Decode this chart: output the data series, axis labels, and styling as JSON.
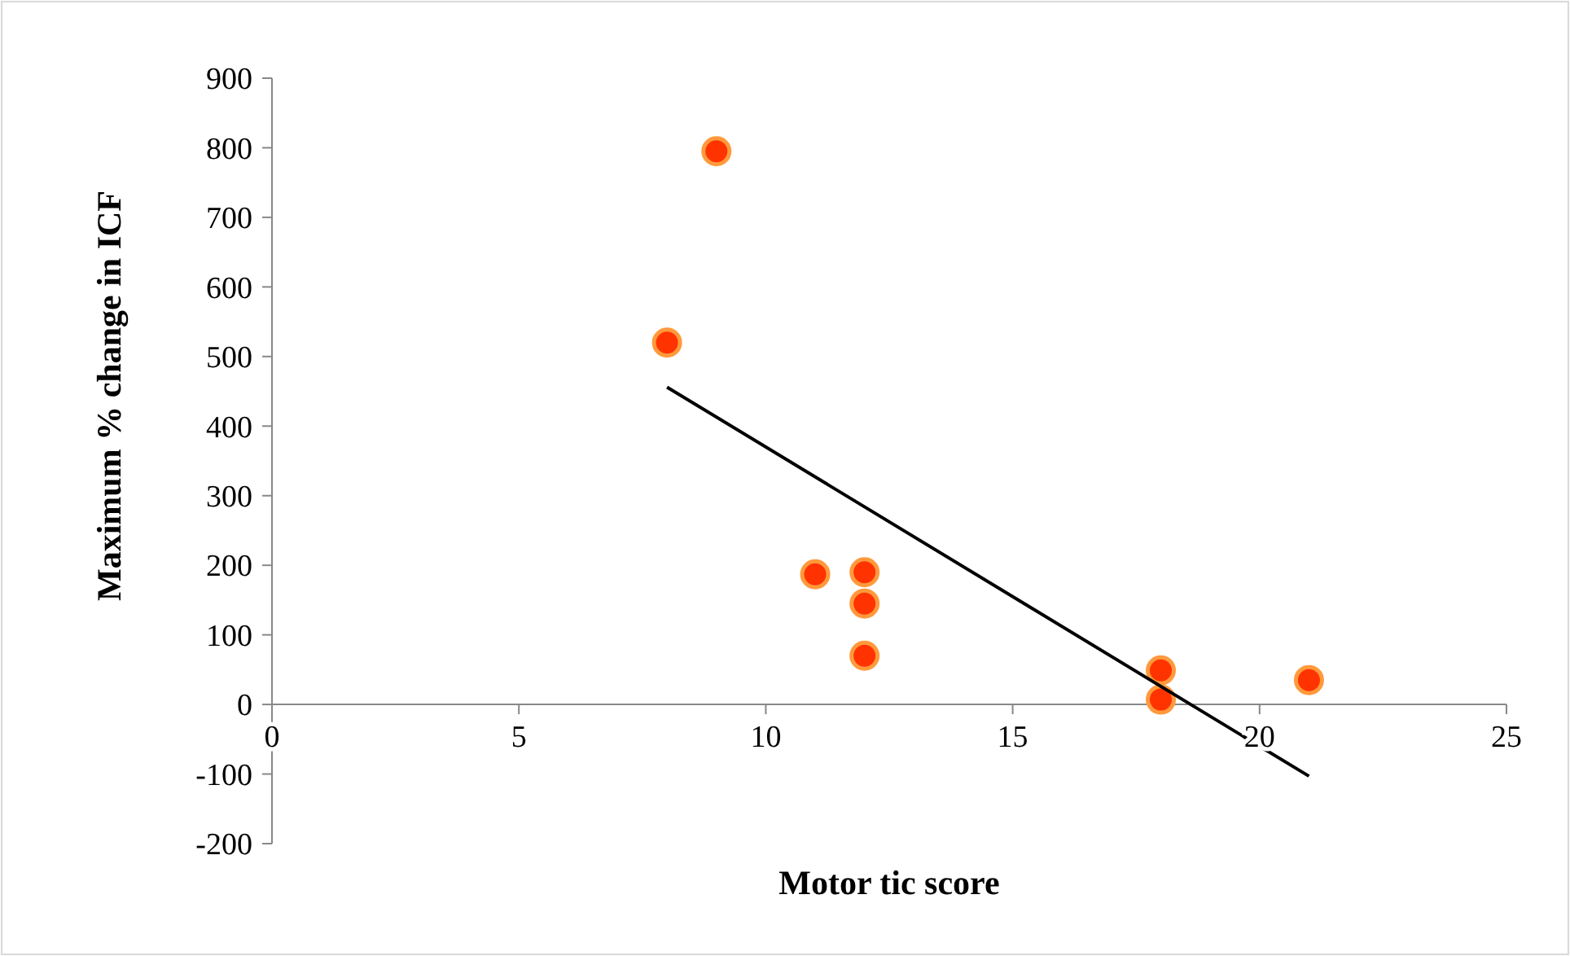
{
  "chart_data": {
    "type": "scatter",
    "xlabel": "Motor tic score",
    "ylabel": "Maximum % change in ICF",
    "xlim": [
      0,
      25
    ],
    "xticks": [
      0,
      5,
      10,
      15,
      20,
      25
    ],
    "ylim": [
      -200,
      900
    ],
    "yticks": [
      -200,
      -100,
      0,
      100,
      200,
      300,
      400,
      500,
      600,
      700,
      800,
      900
    ],
    "grid": false,
    "marker": "circle",
    "series": [
      {
        "color": "#ff3300",
        "x": [
          8,
          9,
          11,
          12,
          12,
          12,
          18,
          18,
          21
        ],
        "values": [
          520,
          795,
          187,
          190,
          145,
          70,
          49,
          7,
          35
        ]
      },
      {
        "type": "line",
        "color": "#000000",
        "x": [
          8,
          21
        ],
        "values": [
          456,
          -103
        ],
        "line_style": "solid",
        "marker": "none"
      }
    ]
  }
}
